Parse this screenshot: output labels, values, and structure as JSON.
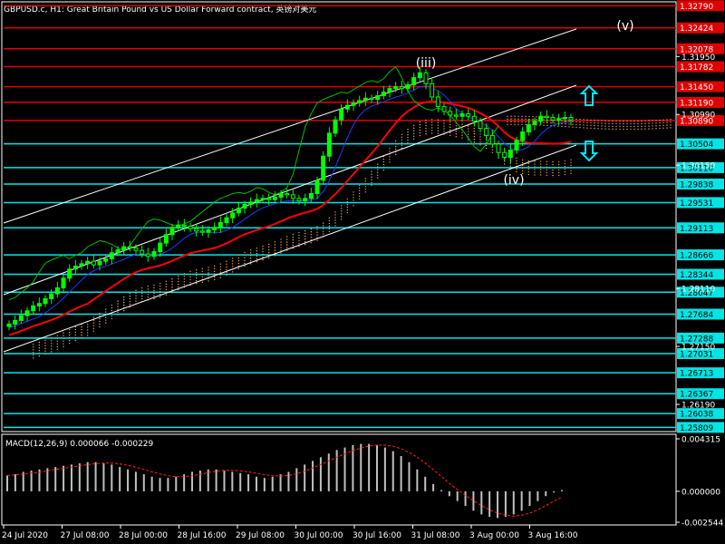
{
  "header": {
    "title": "GBPUSD.c, H1:  Great Britain Pound vs US Dollar Forward contract, 英镑对美元"
  },
  "colors": {
    "background": "#000000",
    "candle": "#00ff00",
    "support_line": "#00e5e5",
    "resistance_line": "#e00000",
    "channel_line": "#ffffff",
    "ma_red": "#ff0000",
    "ma_blue": "#1e3cff",
    "chikou_green": "#00c000",
    "cloud_dots": "#f4a460",
    "macd_hist": "#c0c0c0",
    "macd_signal": "#ff2020",
    "arrow_cyan": "#00e5ff"
  },
  "chart_data": {
    "type": "line",
    "instrument": "GBPUSD.c",
    "timeframe": "H1",
    "ylim": [
      1.2574,
      1.3284
    ],
    "price_ticks": [
      "1.32790",
      "1.32424",
      "1.32078",
      "1.31950",
      "1.31782",
      "1.31450",
      "1.31190",
      "1.30990",
      "1.30890",
      "1.30504",
      "1.30150",
      "1.30110",
      "1.29838",
      "1.29531",
      "1.29113",
      "1.28666",
      "1.28344",
      "1.28110",
      "1.28047",
      "1.27684",
      "1.27288",
      "1.27150",
      "1.27031",
      "1.26713",
      "1.26367",
      "1.26190",
      "1.26038",
      "1.25809"
    ],
    "resistance_levels": [
      {
        "label": "1.32790",
        "value": 1.3279
      },
      {
        "label": "1.32424",
        "value": 1.32424
      },
      {
        "label": "1.32078",
        "value": 1.32078
      },
      {
        "label": "1.31782",
        "value": 1.31782
      },
      {
        "label": "1.31450",
        "value": 1.3145
      },
      {
        "label": "1.31190",
        "value": 1.3119
      },
      {
        "label": "1.30890",
        "value": 1.3089
      }
    ],
    "support_levels": [
      {
        "label": "1.30504",
        "value": 1.30504
      },
      {
        "label": "1.30110",
        "value": 1.3011
      },
      {
        "label": "1.29838",
        "value": 1.29838
      },
      {
        "label": "1.29531",
        "value": 1.29531
      },
      {
        "label": "1.29113",
        "value": 1.29113
      },
      {
        "label": "1.28666",
        "value": 1.28666
      },
      {
        "label": "1.28344",
        "value": 1.28344
      },
      {
        "label": "1.28047",
        "value": 1.28047
      },
      {
        "label": "1.27684",
        "value": 1.27684
      },
      {
        "label": "1.27288",
        "value": 1.27288
      },
      {
        "label": "1.27031",
        "value": 1.27031
      },
      {
        "label": "1.26713",
        "value": 1.26713
      },
      {
        "label": "1.26367",
        "value": 1.26367
      },
      {
        "label": "1.26038",
        "value": 1.26038
      },
      {
        "label": "1.25809",
        "value": 1.25809
      }
    ],
    "x_labels": [
      "24 Jul 2020",
      "27 Jul 08:00",
      "28 Jul 00:00",
      "28 Jul 16:00",
      "29 Jul 08:00",
      "30 Jul 00:00",
      "30 Jul 16:00",
      "31 Jul 08:00",
      "3 Aug 00:00",
      "3 Aug 16:00"
    ],
    "close_series": [
      1.2752,
      1.2758,
      1.2766,
      1.2774,
      1.2782,
      1.2786,
      1.2794,
      1.2802,
      1.2812,
      1.2828,
      1.2843,
      1.2848,
      1.2852,
      1.2856,
      1.285,
      1.2856,
      1.286,
      1.287,
      1.2875,
      1.288,
      1.2878,
      1.2874,
      1.2868,
      1.2864,
      1.2872,
      1.2886,
      1.29,
      1.2912,
      1.2916,
      1.2914,
      1.291,
      1.2906,
      1.2904,
      1.2908,
      1.2912,
      1.292,
      1.2928,
      1.2936,
      1.2944,
      1.295,
      1.2954,
      1.2958,
      1.296,
      1.2958,
      1.2962,
      1.2968,
      1.2966,
      1.296,
      1.2956,
      1.296,
      1.2968,
      1.299,
      1.303,
      1.3068,
      1.309,
      1.3108,
      1.3114,
      1.3118,
      1.3122,
      1.3126,
      1.3124,
      1.313,
      1.3136,
      1.3142,
      1.3145,
      1.3142,
      1.3148,
      1.316,
      1.3168,
      1.315,
      1.3128,
      1.3112,
      1.3104,
      1.3098,
      1.3096,
      1.31,
      1.3096,
      1.3088,
      1.3076,
      1.3064,
      1.305,
      1.3036,
      1.3028,
      1.304,
      1.3056,
      1.307,
      1.3082,
      1.3088,
      1.3096,
      1.3094,
      1.309,
      1.3092,
      1.3094,
      1.309
    ],
    "wave_labels": [
      "(iii)",
      "(iv)",
      "(v)"
    ],
    "indicator": {
      "name": "MACD(12,26,9)",
      "value_main": "0.000066",
      "value_signal": "-0.000229",
      "axis_labels": [
        "0.004315",
        "0.000000",
        "-0.002544"
      ],
      "ylim": [
        -0.002544,
        0.004315
      ],
      "histogram": [
        0.0013,
        0.0014,
        0.0016,
        0.0017,
        0.0018,
        0.0019,
        0.002,
        0.0021,
        0.0022,
        0.0023,
        0.0024,
        0.0024,
        0.0023,
        0.0022,
        0.002,
        0.0018,
        0.0016,
        0.0014,
        0.0012,
        0.0011,
        0.0011,
        0.0012,
        0.0014,
        0.0016,
        0.0017,
        0.0018,
        0.0018,
        0.0017,
        0.0016,
        0.0015,
        0.0014,
        0.0012,
        0.0011,
        0.0012,
        0.0014,
        0.0016,
        0.0019,
        0.0022,
        0.0025,
        0.0028,
        0.0031,
        0.0034,
        0.0036,
        0.0038,
        0.0039,
        0.0039,
        0.0038,
        0.0036,
        0.0033,
        0.0029,
        0.0024,
        0.0018,
        0.0012,
        0.0006,
        0.0001,
        -0.0004,
        -0.0008,
        -0.0012,
        -0.0016,
        -0.0019,
        -0.0021,
        -0.0022,
        -0.0021,
        -0.0019,
        -0.0016,
        -0.0012,
        -0.0008,
        -0.0004,
        -0.0001,
        0.0001
      ]
    }
  }
}
